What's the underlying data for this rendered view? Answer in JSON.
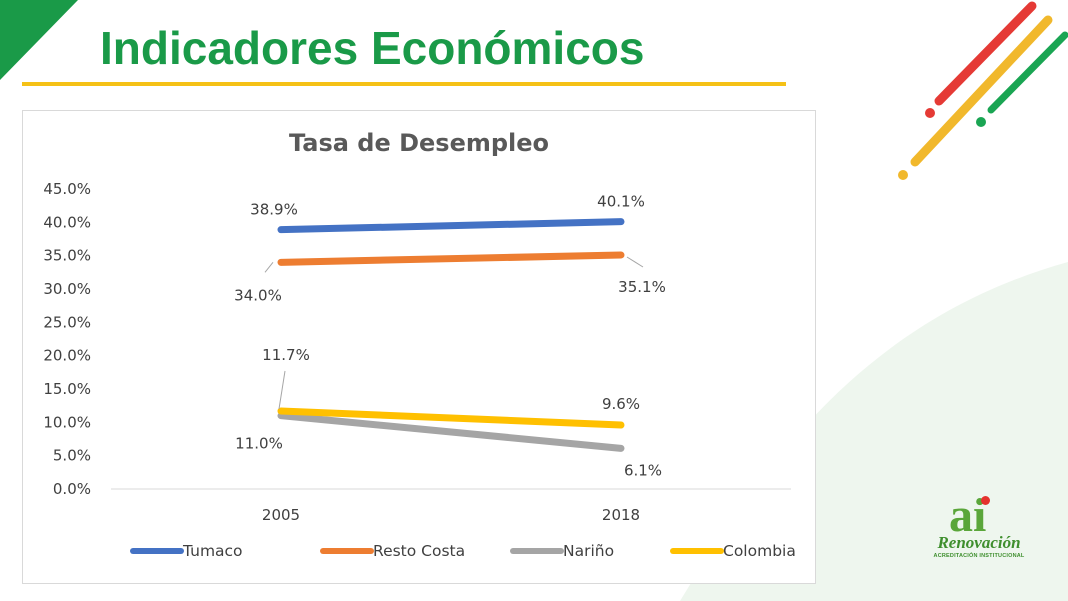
{
  "page": {
    "title": "Indicadores Económicos",
    "brand_green": "#1a9a48",
    "accent_yellow": "#f5c116"
  },
  "logo": {
    "mark": "ai",
    "name": "Renovación",
    "subtitle": "ACREDITACIÓN INSTITUCIONAL"
  },
  "chart_data": {
    "type": "line",
    "title": "Tasa de Desempleo",
    "categories": [
      "2005",
      "2018"
    ],
    "ylim": [
      0,
      45
    ],
    "yticks": [
      "0.0%",
      "5.0%",
      "10.0%",
      "15.0%",
      "20.0%",
      "25.0%",
      "30.0%",
      "35.0%",
      "40.0%",
      "45.0%"
    ],
    "grid": false,
    "legend_position": "bottom",
    "series": [
      {
        "name": "Tumaco",
        "color": "#4472c4",
        "values": [
          38.9,
          40.1
        ],
        "labels": [
          "38.9%",
          "40.1%"
        ]
      },
      {
        "name": "Resto Costa",
        "color": "#ed7d31",
        "values": [
          34.0,
          35.1
        ],
        "labels": [
          "34.0%",
          "35.1%"
        ]
      },
      {
        "name": "Nariño",
        "color": "#a5a5a5",
        "values": [
          11.0,
          6.1
        ],
        "labels": [
          "11.0%",
          "6.1%"
        ]
      },
      {
        "name": "Colombia",
        "color": "#ffc000",
        "values": [
          11.7,
          9.6
        ],
        "labels": [
          "11.7%",
          "9.6%"
        ]
      }
    ]
  }
}
